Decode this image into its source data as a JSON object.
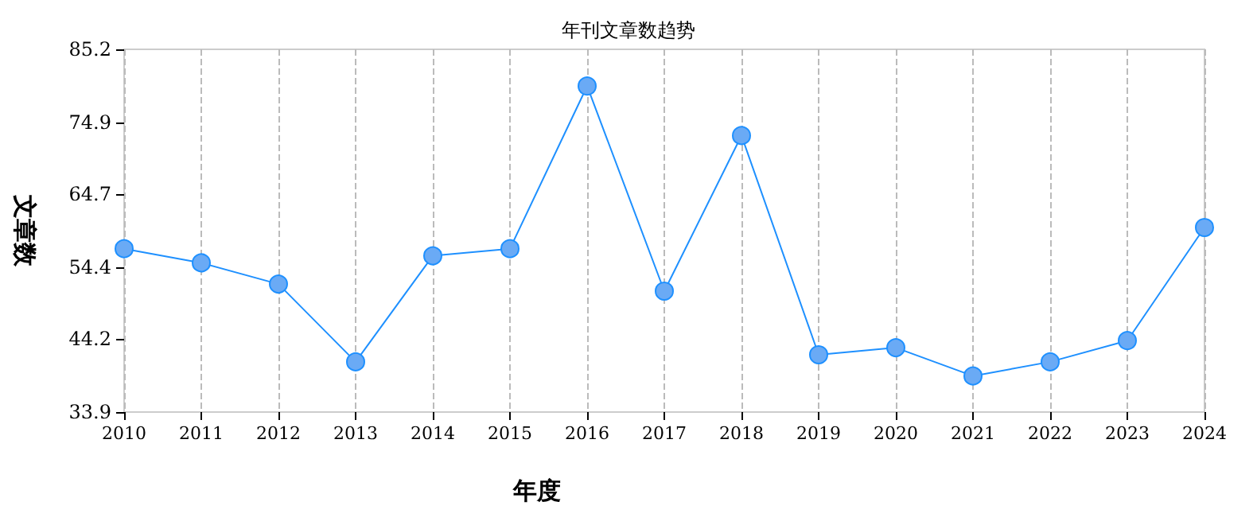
{
  "chart_data": {
    "type": "line",
    "title": "年刊文章数趋势",
    "xlabel": "年度",
    "ylabel": "文章数",
    "categories": [
      "2010",
      "2011",
      "2012",
      "2013",
      "2014",
      "2015",
      "2016",
      "2017",
      "2018",
      "2019",
      "2020",
      "2021",
      "2022",
      "2023",
      "2024"
    ],
    "series": [
      {
        "color": "#1e90ff",
        "values": [
          57,
          55,
          52,
          41,
          56,
          57,
          80,
          51,
          73,
          42,
          43,
          39,
          41,
          44,
          60
        ]
      }
    ],
    "ylim": [
      33.9,
      85.2
    ],
    "yticks": [
      33.9,
      44.2,
      54.4,
      64.7,
      74.9,
      85.2
    ],
    "grid": "x",
    "marker": "circle"
  }
}
